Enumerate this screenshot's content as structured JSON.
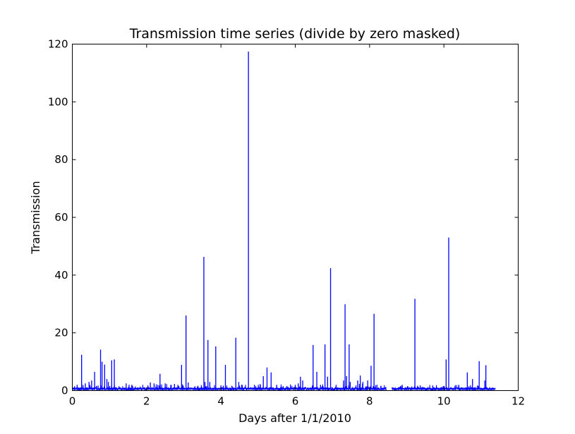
{
  "chart_data": {
    "type": "line",
    "title": "Transmission time series (divide by zero masked)",
    "xlabel": "Days after 1/1/2010",
    "ylabel": "Transmission",
    "xlim": [
      0,
      12
    ],
    "ylim": [
      0,
      120
    ],
    "x_ticks": [
      0,
      2,
      4,
      6,
      8,
      10,
      12
    ],
    "y_ticks": [
      0,
      20,
      40,
      60,
      80,
      100,
      120
    ],
    "x_tick_labels": [
      "0",
      "2",
      "4",
      "6",
      "8",
      "10",
      "12"
    ],
    "y_tick_labels": [
      "0",
      "20",
      "40",
      "60",
      "80",
      "100",
      "120"
    ],
    "grid": false,
    "legend": "none",
    "series_color": "#0000ff",
    "data_range": [
      0,
      11.38
    ],
    "masked_gaps": [
      [
        8.45,
        8.6
      ]
    ],
    "spikes": [
      {
        "x": 0.06,
        "y": 1.5
      },
      {
        "x": 0.13,
        "y": 2.0
      },
      {
        "x": 0.25,
        "y": 12.4
      },
      {
        "x": 0.35,
        "y": 2.5
      },
      {
        "x": 0.45,
        "y": 3.0
      },
      {
        "x": 0.52,
        "y": 3.5
      },
      {
        "x": 0.6,
        "y": 6.5
      },
      {
        "x": 0.76,
        "y": 14.2
      },
      {
        "x": 0.8,
        "y": 10.0
      },
      {
        "x": 0.87,
        "y": 9.0
      },
      {
        "x": 0.93,
        "y": 4.0
      },
      {
        "x": 0.97,
        "y": 3.0
      },
      {
        "x": 1.06,
        "y": 10.5
      },
      {
        "x": 1.13,
        "y": 10.8
      },
      {
        "x": 1.45,
        "y": 2.5
      },
      {
        "x": 1.6,
        "y": 2.0
      },
      {
        "x": 2.1,
        "y": 2.8
      },
      {
        "x": 2.2,
        "y": 2.5
      },
      {
        "x": 2.3,
        "y": 2.0
      },
      {
        "x": 2.36,
        "y": 5.8
      },
      {
        "x": 2.5,
        "y": 2.5
      },
      {
        "x": 2.65,
        "y": 2.0
      },
      {
        "x": 2.75,
        "y": 2.3
      },
      {
        "x": 2.84,
        "y": 2.0
      },
      {
        "x": 2.94,
        "y": 8.9
      },
      {
        "x": 3.06,
        "y": 26.0
      },
      {
        "x": 3.12,
        "y": 2.8
      },
      {
        "x": 3.3,
        "y": 1.5
      },
      {
        "x": 3.54,
        "y": 46.3
      },
      {
        "x": 3.57,
        "y": 3.0
      },
      {
        "x": 3.65,
        "y": 17.5
      },
      {
        "x": 3.7,
        "y": 3.0
      },
      {
        "x": 3.86,
        "y": 15.3
      },
      {
        "x": 4.0,
        "y": 1.8
      },
      {
        "x": 4.12,
        "y": 8.9
      },
      {
        "x": 4.3,
        "y": 1.5
      },
      {
        "x": 4.4,
        "y": 18.3
      },
      {
        "x": 4.48,
        "y": 3.0
      },
      {
        "x": 4.56,
        "y": 2.0
      },
      {
        "x": 4.74,
        "y": 117.4
      },
      {
        "x": 4.9,
        "y": 2.0
      },
      {
        "x": 5.06,
        "y": 2.0
      },
      {
        "x": 5.14,
        "y": 5.0
      },
      {
        "x": 5.24,
        "y": 8.0
      },
      {
        "x": 5.35,
        "y": 6.3
      },
      {
        "x": 5.5,
        "y": 2.0
      },
      {
        "x": 6.0,
        "y": 2.0
      },
      {
        "x": 6.08,
        "y": 2.5
      },
      {
        "x": 6.14,
        "y": 4.8
      },
      {
        "x": 6.2,
        "y": 3.5
      },
      {
        "x": 6.48,
        "y": 15.8
      },
      {
        "x": 6.58,
        "y": 6.5
      },
      {
        "x": 6.68,
        "y": 2.0
      },
      {
        "x": 6.8,
        "y": 16.0
      },
      {
        "x": 6.87,
        "y": 4.8
      },
      {
        "x": 6.95,
        "y": 42.4
      },
      {
        "x": 7.1,
        "y": 2.0
      },
      {
        "x": 7.3,
        "y": 3.5
      },
      {
        "x": 7.34,
        "y": 29.9
      },
      {
        "x": 7.38,
        "y": 5.0
      },
      {
        "x": 7.45,
        "y": 16.0
      },
      {
        "x": 7.48,
        "y": 3.0
      },
      {
        "x": 7.68,
        "y": 3.5
      },
      {
        "x": 7.75,
        "y": 5.2
      },
      {
        "x": 7.82,
        "y": 3.0
      },
      {
        "x": 7.95,
        "y": 3.5
      },
      {
        "x": 8.04,
        "y": 8.6
      },
      {
        "x": 8.12,
        "y": 26.6
      },
      {
        "x": 8.2,
        "y": 2.0
      },
      {
        "x": 8.3,
        "y": 1.5
      },
      {
        "x": 8.88,
        "y": 2.0
      },
      {
        "x": 9.22,
        "y": 31.8
      },
      {
        "x": 9.7,
        "y": 1.8
      },
      {
        "x": 10.06,
        "y": 10.8
      },
      {
        "x": 10.13,
        "y": 53.0
      },
      {
        "x": 10.3,
        "y": 1.5
      },
      {
        "x": 10.4,
        "y": 2.0
      },
      {
        "x": 10.63,
        "y": 6.3
      },
      {
        "x": 10.77,
        "y": 4.0
      },
      {
        "x": 10.95,
        "y": 10.2
      },
      {
        "x": 11.1,
        "y": 3.5
      },
      {
        "x": 11.13,
        "y": 8.8
      },
      {
        "x": 11.3,
        "y": 1.0
      }
    ]
  }
}
